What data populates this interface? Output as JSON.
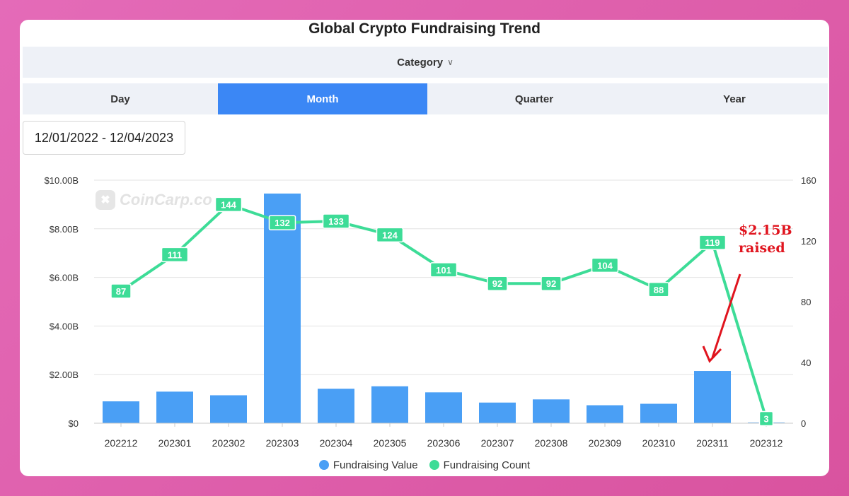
{
  "title": "Global Crypto Fundraising Trend",
  "category": {
    "label": "Category",
    "chevron_icon": "chevron-down-icon"
  },
  "tabs": [
    {
      "label": "Day",
      "active": false
    },
    {
      "label": "Month",
      "active": true
    },
    {
      "label": "Quarter",
      "active": false
    },
    {
      "label": "Year",
      "active": false
    }
  ],
  "date_range": "12/01/2022 - 12/04/2023",
  "watermark": {
    "text": "CoinCarp.co",
    "icon": "coincarp-logo-icon"
  },
  "annotation": {
    "line1": "$2.15B",
    "line2": "raised",
    "color": "#e0141e"
  },
  "legend": [
    {
      "label": "Fundraising Value",
      "color": "#4a9ff5"
    },
    {
      "label": "Fundraising Count",
      "color": "#3ddc97"
    }
  ],
  "chart_data": {
    "type": "bar",
    "title": "Global Crypto Fundraising Trend",
    "categories": [
      "202212",
      "202301",
      "202302",
      "202303",
      "202304",
      "202305",
      "202306",
      "202307",
      "202308",
      "202309",
      "202310",
      "202311",
      "202312"
    ],
    "series": [
      {
        "name": "Fundraising Value",
        "type": "bar",
        "axis": "left",
        "unit": "B USD",
        "values": [
          0.9,
          1.3,
          1.15,
          9.45,
          1.42,
          1.52,
          1.27,
          0.85,
          0.98,
          0.74,
          0.8,
          2.15,
          0.03
        ]
      },
      {
        "name": "Fundraising Count",
        "type": "line",
        "axis": "right",
        "values": [
          87,
          111,
          144,
          132,
          133,
          124,
          101,
          92,
          92,
          104,
          88,
          119,
          3
        ]
      }
    ],
    "y_left": {
      "ticks": [
        "$0",
        "$2.00B",
        "$4.00B",
        "$6.00B",
        "$8.00B",
        "$10.00B"
      ],
      "range": [
        0,
        10
      ]
    },
    "y_right": {
      "ticks": [
        "0",
        "40",
        "80",
        "120",
        "160"
      ],
      "range": [
        0,
        160
      ]
    },
    "grid": true,
    "legend_position": "bottom-center",
    "colors": {
      "bar": "#4a9ff5",
      "line": "#3ddc97"
    }
  }
}
